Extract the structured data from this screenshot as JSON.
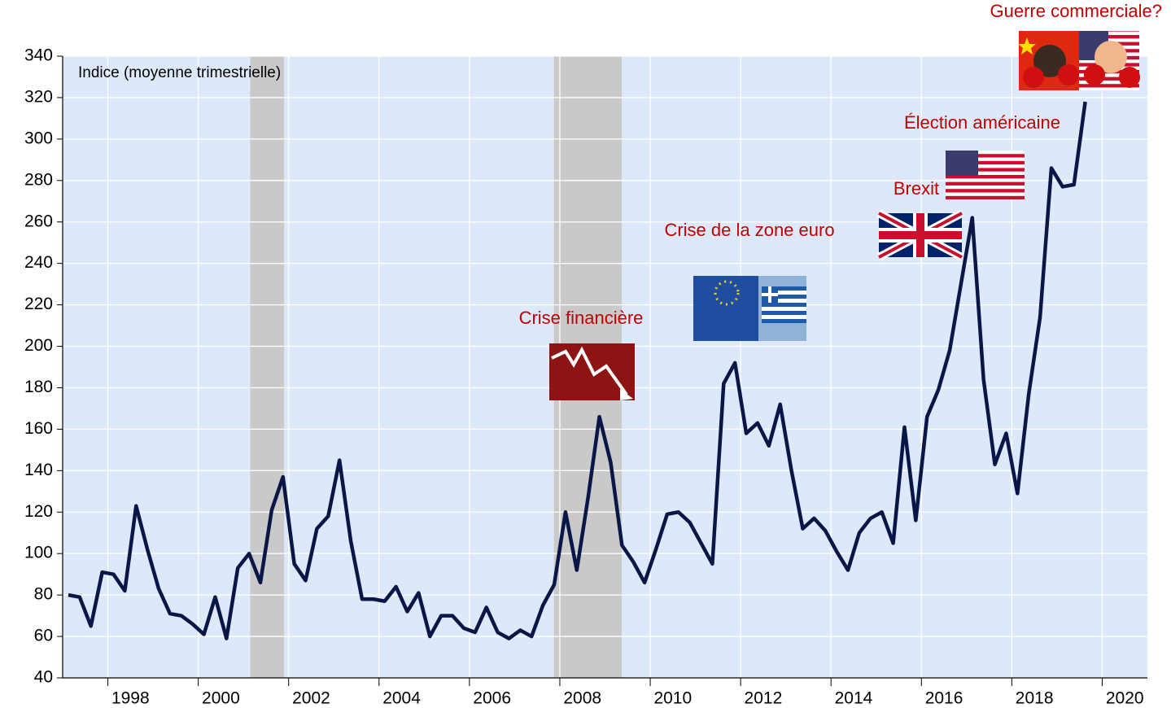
{
  "chart_data": {
    "type": "line",
    "subtitle": "Indice (moyenne trimestrielle)",
    "x": [
      1997.125,
      1997.375,
      1997.625,
      1997.875,
      1998.125,
      1998.375,
      1998.625,
      1998.875,
      1999.125,
      1999.375,
      1999.625,
      1999.875,
      2000.125,
      2000.375,
      2000.625,
      2000.875,
      2001.125,
      2001.375,
      2001.625,
      2001.875,
      2002.125,
      2002.375,
      2002.625,
      2002.875,
      2003.125,
      2003.375,
      2003.625,
      2003.875,
      2004.125,
      2004.375,
      2004.625,
      2004.875,
      2005.125,
      2005.375,
      2005.625,
      2005.875,
      2006.125,
      2006.375,
      2006.625,
      2006.875,
      2007.125,
      2007.375,
      2007.625,
      2007.875,
      2008.125,
      2008.375,
      2008.625,
      2008.875,
      2009.125,
      2009.375,
      2009.625,
      2009.875,
      2010.125,
      2010.375,
      2010.625,
      2010.875,
      2011.125,
      2011.375,
      2011.625,
      2011.875,
      2012.125,
      2012.375,
      2012.625,
      2012.875,
      2013.125,
      2013.375,
      2013.625,
      2013.875,
      2014.125,
      2014.375,
      2014.625,
      2014.875,
      2015.125,
      2015.375,
      2015.625,
      2015.875,
      2016.125,
      2016.375,
      2016.625,
      2016.875,
      2017.125,
      2017.375,
      2017.625,
      2017.875,
      2018.125,
      2018.375,
      2018.625,
      2018.875,
      2019.125,
      2019.375,
      2019.625
    ],
    "values": [
      80,
      79,
      65,
      91,
      90,
      82,
      123,
      102,
      83,
      71,
      70,
      66,
      61,
      79,
      59,
      93,
      100,
      86,
      121,
      137,
      95,
      87,
      112,
      118,
      145,
      106,
      78,
      78,
      77,
      84,
      72,
      81,
      60,
      70,
      70,
      64,
      62,
      74,
      62,
      59,
      63,
      60,
      75,
      85,
      120,
      92,
      127,
      166,
      144,
      104,
      96,
      86,
      102,
      119,
      120,
      115,
      105,
      95,
      182,
      192,
      158,
      163,
      152,
      172,
      140,
      112,
      117,
      111,
      101,
      92,
      110,
      117,
      120,
      105,
      161,
      116,
      166,
      179,
      198,
      230,
      262,
      184,
      143,
      158,
      129,
      177,
      214,
      286,
      277,
      278,
      318
    ],
    "color": "#0a1746",
    "xlim": [
      1997,
      2021
    ],
    "xticks": [
      1998,
      2000,
      2002,
      2004,
      2006,
      2008,
      2010,
      2012,
      2014,
      2016,
      2018,
      2020
    ],
    "ylim": [
      40,
      340
    ],
    "yticks": [
      40,
      60,
      80,
      100,
      120,
      140,
      160,
      180,
      200,
      220,
      240,
      260,
      280,
      300,
      320,
      340
    ],
    "grid": true,
    "shaded_periods": [
      [
        2001.15,
        2001.9
      ],
      [
        2007.87,
        2009.37
      ]
    ],
    "annotations": [
      "Crise financière",
      "Crise de la zone euro",
      "Brexit",
      "Élection américaine",
      "Guerre commerciale?"
    ]
  }
}
